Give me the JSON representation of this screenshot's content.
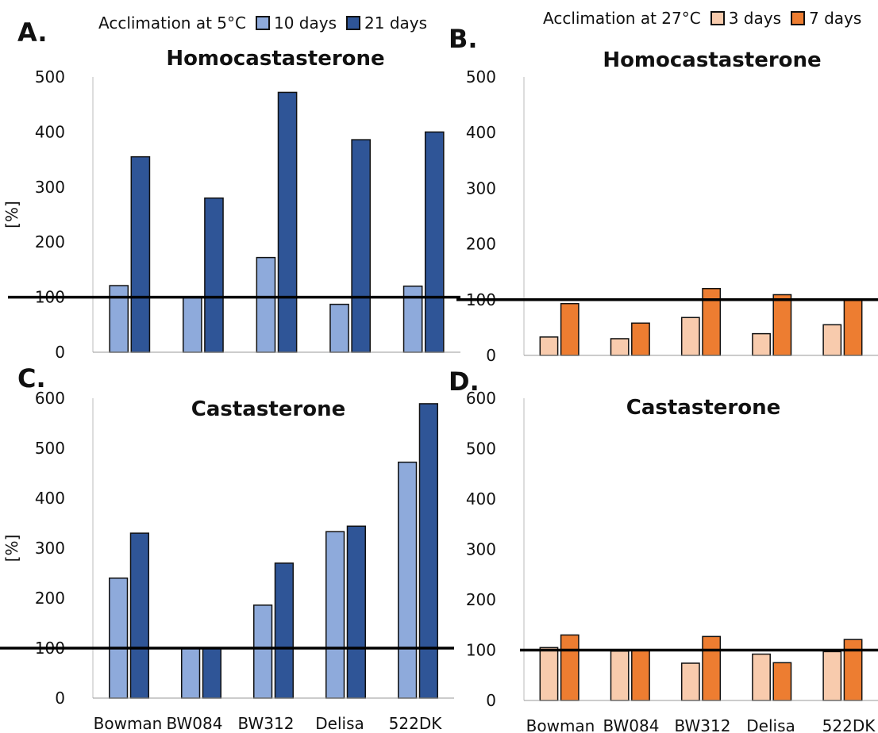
{
  "legends": {
    "cold": {
      "title": "Acclimation at 5°C",
      "items": [
        {
          "label": "10 days",
          "color": "#8eaadb"
        },
        {
          "label": "21 days",
          "color": "#2f5597"
        }
      ]
    },
    "warm": {
      "title": "Acclimation at 27°C",
      "items": [
        {
          "label": "3 days",
          "color": "#f8cbad"
        },
        {
          "label": "7 days",
          "color": "#ed7d31"
        }
      ]
    }
  },
  "panel_labels": [
    "A.",
    "B.",
    "C.",
    "D."
  ],
  "chart_data": [
    {
      "panel": "A.",
      "type": "bar",
      "title": "Homocastasterone",
      "ylabel": "[%]",
      "categories": [
        "Bowman",
        "BW084",
        "BW312",
        "Delisa",
        "522DK"
      ],
      "ylim": [
        0,
        500
      ],
      "yticks": [
        0,
        100,
        200,
        300,
        400,
        500
      ],
      "reference_line": 100,
      "show_xticklabels": false,
      "grid": false,
      "series": [
        {
          "name": "10 days",
          "color": "#8eaadb",
          "values": [
            121,
            99,
            172,
            87,
            120
          ]
        },
        {
          "name": "21 days",
          "color": "#2f5597",
          "values": [
            355,
            280,
            472,
            386,
            400
          ]
        }
      ]
    },
    {
      "panel": "B.",
      "type": "bar",
      "title": "Homocastasterone",
      "ylabel": "",
      "categories": [
        "Bowman",
        "BW084",
        "BW312",
        "Delisa",
        "522DK"
      ],
      "ylim": [
        0,
        500
      ],
      "yticks": [
        0,
        100,
        200,
        300,
        400,
        500
      ],
      "reference_line": 100,
      "show_xticklabels": false,
      "grid": false,
      "series": [
        {
          "name": "3 days",
          "color": "#f8cbad",
          "values": [
            33,
            30,
            68,
            39,
            55
          ]
        },
        {
          "name": "7 days",
          "color": "#ed7d31",
          "values": [
            93,
            58,
            120,
            109,
            100
          ]
        }
      ]
    },
    {
      "panel": "C.",
      "type": "bar",
      "title": "Castasterone",
      "ylabel": "[%]",
      "categories": [
        "Bowman",
        "BW084",
        "BW312",
        "Delisa",
        "522DK"
      ],
      "ylim": [
        0,
        600
      ],
      "yticks": [
        0,
        100,
        200,
        300,
        400,
        500,
        600
      ],
      "reference_line": 100,
      "show_xticklabels": true,
      "grid": false,
      "series": [
        {
          "name": "10 days",
          "color": "#8eaadb",
          "values": [
            240,
            100,
            186,
            333,
            472
          ]
        },
        {
          "name": "21 days",
          "color": "#2f5597",
          "values": [
            330,
            100,
            270,
            344,
            589
          ]
        }
      ]
    },
    {
      "panel": "D.",
      "type": "bar",
      "title": "Castasterone",
      "ylabel": "",
      "categories": [
        "Bowman",
        "BW084",
        "BW312",
        "Delisa",
        "522DK"
      ],
      "ylim": [
        0,
        600
      ],
      "yticks": [
        0,
        100,
        200,
        300,
        400,
        500,
        600
      ],
      "reference_line": 100,
      "show_xticklabels": true,
      "grid": false,
      "series": [
        {
          "name": "3 days",
          "color": "#f8cbad",
          "values": [
            105,
            98,
            74,
            92,
            97
          ]
        },
        {
          "name": "7 days",
          "color": "#ed7d31",
          "values": [
            130,
            100,
            127,
            75,
            121
          ]
        }
      ]
    }
  ]
}
